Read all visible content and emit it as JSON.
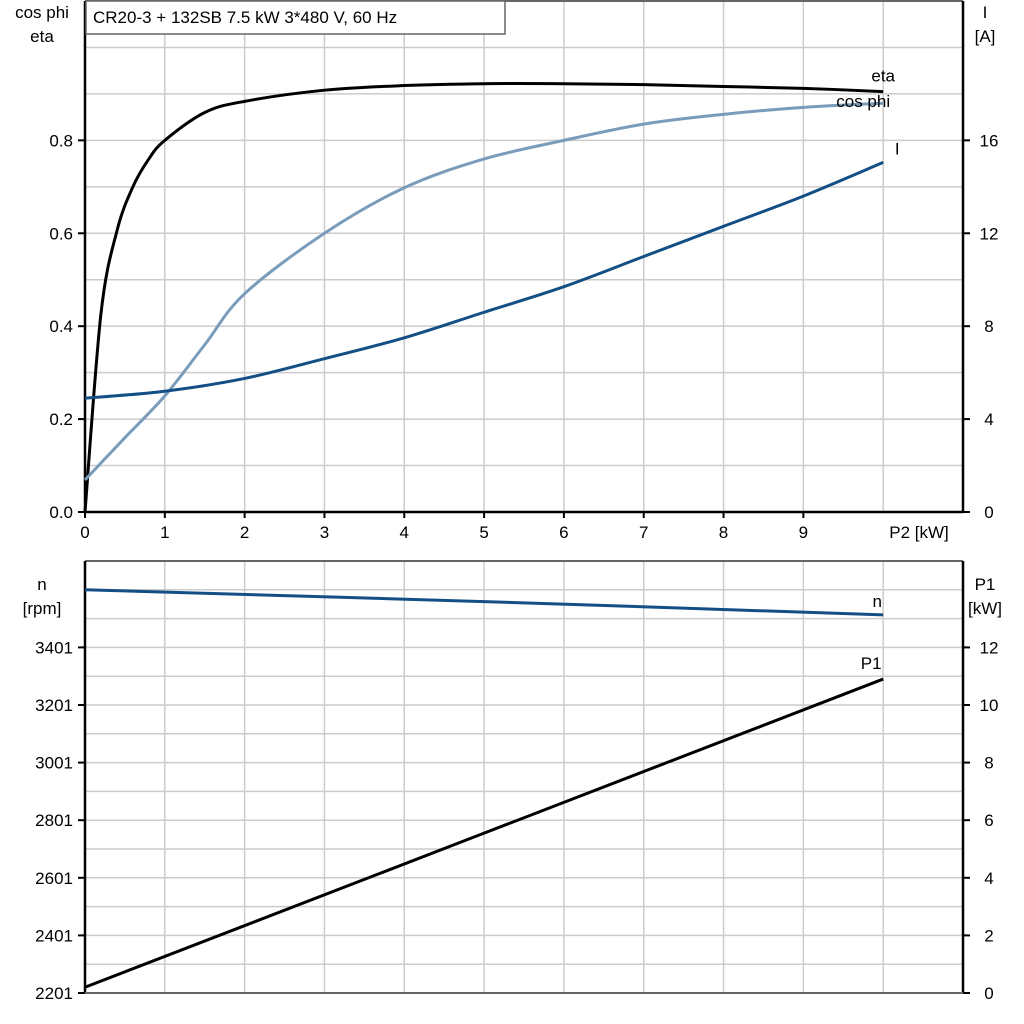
{
  "chart_data": [
    {
      "type": "line",
      "title": "CR20-3 + 132SB   7.5 kW   3*480 V, 60 Hz",
      "xlabel": "P2 [kW]",
      "ylabel_left": [
        "cos phi",
        "eta"
      ],
      "ylabel_right": [
        "I",
        "[A]"
      ],
      "xlim": [
        0,
        11
      ],
      "ylim_left": [
        0,
        1.1
      ],
      "ylim_right": [
        0,
        22
      ],
      "grid": true,
      "x_ticks": [
        "0",
        "1",
        "2",
        "3",
        "4",
        "5",
        "6",
        "7",
        "8",
        "9"
      ],
      "y_left_ticks": [
        "0.0",
        "0.2",
        "0.4",
        "0.6",
        "0.8"
      ],
      "y_right_ticks": [
        "0",
        "4",
        "8",
        "12",
        "16"
      ],
      "series": [
        {
          "name": "eta",
          "axis": "left",
          "color": "#000000",
          "x": [
            0,
            0.2,
            0.4,
            0.6,
            0.8,
            1,
            1.5,
            2,
            3,
            4,
            5,
            6,
            7,
            8,
            9,
            10
          ],
          "y": [
            0,
            0.427,
            0.605,
            0.7,
            0.76,
            0.8,
            0.86,
            0.884,
            0.908,
            0.918,
            0.922,
            0.922,
            0.92,
            0.916,
            0.912,
            0.905
          ]
        },
        {
          "name": "cos phi",
          "axis": "left",
          "color": "#7a9cbb",
          "x": [
            0,
            0.5,
            1,
            1.5,
            2,
            3,
            4,
            5,
            6,
            7,
            8,
            9,
            10
          ],
          "y": [
            0.069,
            0.16,
            0.25,
            0.36,
            0.47,
            0.6,
            0.698,
            0.76,
            0.8,
            0.835,
            0.856,
            0.871,
            0.88
          ]
        },
        {
          "name": "I",
          "axis": "right",
          "color": "#134f85",
          "x": [
            0,
            1,
            2,
            3,
            4,
            5,
            6,
            7,
            8,
            9,
            10
          ],
          "y": [
            4.9,
            5.2,
            5.75,
            6.6,
            7.5,
            8.6,
            9.7,
            11.0,
            12.3,
            13.6,
            15.05
          ]
        }
      ]
    },
    {
      "type": "line",
      "ylabel_left": [
        "n",
        "[rpm]"
      ],
      "ylabel_right": [
        "P1",
        "[kW]"
      ],
      "xlim": [
        0,
        11
      ],
      "ylim_left": [
        2201,
        3701
      ],
      "ylim_right": [
        0,
        15
      ],
      "grid": true,
      "y_left_ticks": [
        "2201",
        "2401",
        "2601",
        "2801",
        "3001",
        "3201",
        "3401"
      ],
      "y_right_ticks": [
        "0",
        "2",
        "4",
        "6",
        "8",
        "10",
        "12"
      ],
      "series": [
        {
          "name": "n",
          "axis": "left",
          "color": "#134f85",
          "x": [
            0,
            5,
            10
          ],
          "y": [
            3601,
            3560,
            3514
          ]
        },
        {
          "name": "P1",
          "axis": "right",
          "color": "#000000",
          "x": [
            0,
            10
          ],
          "y": [
            0.2,
            10.9
          ]
        }
      ]
    }
  ]
}
